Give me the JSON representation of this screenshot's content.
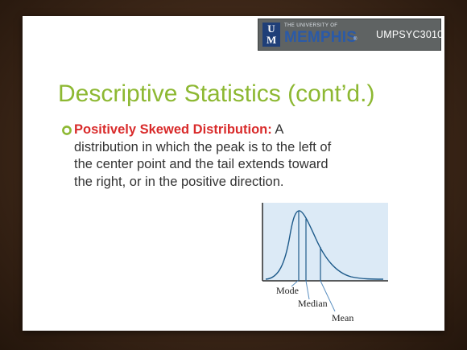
{
  "header": {
    "logo_small": "THE UNIVERSITY OF",
    "logo_big": "MEMPHIS",
    "logo_trademark": "®",
    "logo_mark": "UM",
    "course_code": "UMPSYC3010",
    "band_color": "#5f6363",
    "logo_blue": "#2a5aa8"
  },
  "slide": {
    "title": "Descriptive Statistics (cont’d.)",
    "title_color": "#8db832",
    "bullet_icon": "circle-bullet-icon",
    "bullet": {
      "term": "Positively Skewed Distribution:",
      "term_color": "#d92b2b",
      "definition": " A distribution in which the peak is to the left of the center point and the tail extends toward the right, or in the positive direction."
    }
  },
  "figure": {
    "labels": {
      "mode": "Mode",
      "median": "Median",
      "mean": "Mean"
    },
    "plot_background": "#dceaf6",
    "curve_color": "#1d5a8a"
  }
}
